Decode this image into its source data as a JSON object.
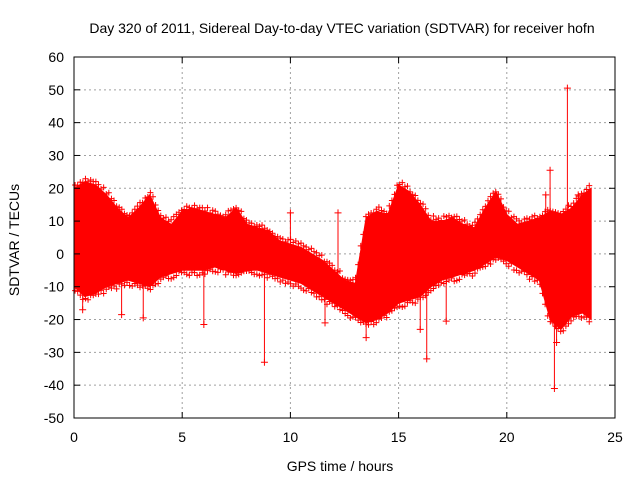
{
  "chart_data": {
    "type": "scatter",
    "title": "Day 320 of 2011, Sidereal Day-to-day VTEC variation (SDTVAR) for receiver hofn",
    "xlabel": "GPS time / hours",
    "ylabel": "SDTVAR / TECUs",
    "xlim": [
      0,
      25
    ],
    "ylim": [
      -50,
      60
    ],
    "xticks": [
      0,
      5,
      10,
      15,
      20,
      25
    ],
    "yticks": [
      -50,
      -40,
      -30,
      -20,
      -10,
      0,
      10,
      20,
      30,
      40,
      50,
      60
    ],
    "grid": true,
    "marker": "+",
    "series_color": "#ff0000",
    "envelope": {
      "x": [
        0,
        0.5,
        1.0,
        1.5,
        2.0,
        2.5,
        3.0,
        3.5,
        4.0,
        4.5,
        5.0,
        5.5,
        6.0,
        6.5,
        7.0,
        7.5,
        8.0,
        8.5,
        9.0,
        9.5,
        10.0,
        10.5,
        11.0,
        11.5,
        12.0,
        12.5,
        13.0,
        13.5,
        14.0,
        14.5,
        15.0,
        15.5,
        16.0,
        16.5,
        17.0,
        17.5,
        18.0,
        18.5,
        19.0,
        19.5,
        20.0,
        20.5,
        21.0,
        21.5,
        22.0,
        22.5,
        23.0,
        23.5,
        23.9
      ],
      "upper": [
        20,
        22,
        21,
        18,
        14,
        11,
        14,
        18,
        11,
        9,
        13,
        14,
        13,
        12,
        11,
        14,
        9,
        8,
        7,
        4,
        3,
        2,
        0,
        -2,
        -5,
        -8,
        -9,
        11,
        13,
        12,
        21,
        19,
        15,
        10,
        10,
        11,
        9,
        8,
        14,
        19,
        12,
        9,
        10,
        11,
        13,
        12,
        14,
        18,
        20
      ],
      "lower": [
        -10,
        -13,
        -12,
        -10,
        -9,
        -8,
        -9,
        -10,
        -7,
        -6,
        -5,
        -5,
        -5,
        -4,
        -5,
        -6,
        -5,
        -5,
        -6,
        -7,
        -8,
        -9,
        -11,
        -13,
        -15,
        -17,
        -19,
        -21,
        -20,
        -18,
        -15,
        -14,
        -13,
        -10,
        -8,
        -7,
        -6,
        -5,
        -3,
        -1,
        -2,
        -4,
        -6,
        -8,
        -20,
        -23,
        -19,
        -18,
        -20
      ]
    },
    "outliers": [
      {
        "x": 22.8,
        "y": 50.5
      },
      {
        "x": 22.0,
        "y": 25.5
      },
      {
        "x": 22.2,
        "y": -41
      },
      {
        "x": 8.8,
        "y": -33
      },
      {
        "x": 16.3,
        "y": -32
      },
      {
        "x": 13.5,
        "y": -25.5
      },
      {
        "x": 6.0,
        "y": -21.5
      },
      {
        "x": 11.6,
        "y": -21
      },
      {
        "x": 17.2,
        "y": -20.5
      },
      {
        "x": 3.2,
        "y": -19.5
      },
      {
        "x": 2.2,
        "y": -18.5
      },
      {
        "x": 0.4,
        "y": -17
      },
      {
        "x": 10.0,
        "y": 12.5
      },
      {
        "x": 12.2,
        "y": 12.5
      },
      {
        "x": 23.3,
        "y": 18
      },
      {
        "x": 21.8,
        "y": 18
      },
      {
        "x": 16.0,
        "y": -23
      },
      {
        "x": 22.3,
        "y": -27
      }
    ]
  }
}
